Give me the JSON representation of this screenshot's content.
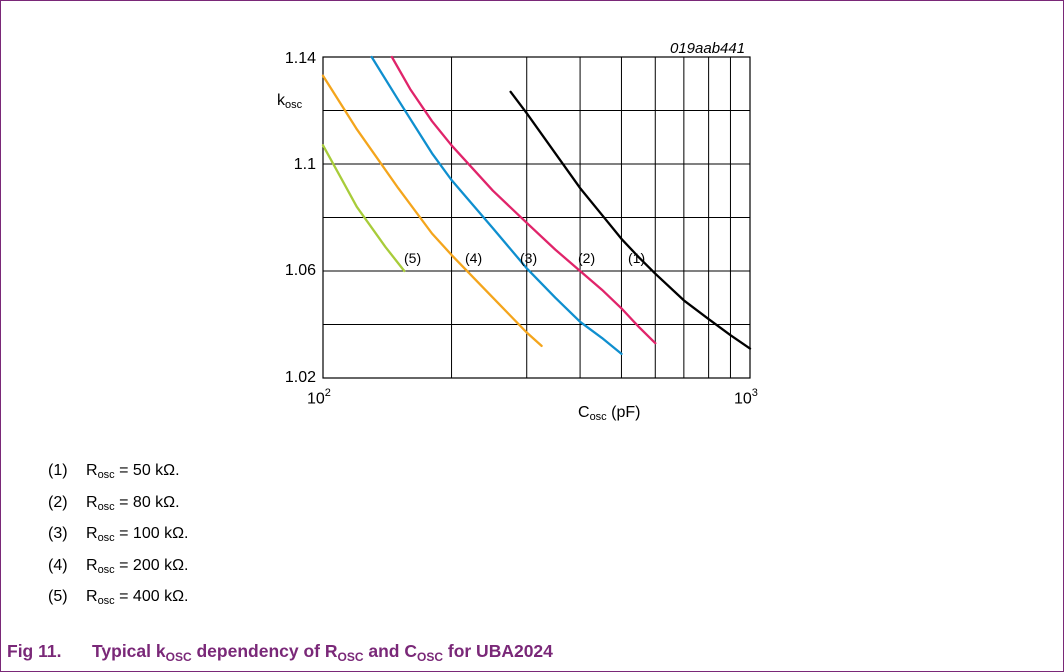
{
  "figure": {
    "code": "019aab441",
    "caption_number": "Fig 11.",
    "caption_parts": [
      "Typical k",
      "OSC",
      " dependency of R",
      "OSC",
      " and C",
      "OSC",
      " for UBA2024"
    ]
  },
  "legend": [
    {
      "num": "(1)",
      "prefix": "R",
      "sub": "osc",
      "text": " = 50 kΩ."
    },
    {
      "num": "(2)",
      "prefix": "R",
      "sub": "osc",
      "text": " = 80 kΩ."
    },
    {
      "num": "(3)",
      "prefix": "R",
      "sub": "osc",
      "text": " = 100 kΩ."
    },
    {
      "num": "(4)",
      "prefix": "R",
      "sub": "osc",
      "text": " = 200 kΩ."
    },
    {
      "num": "(5)",
      "prefix": "R",
      "sub": "osc",
      "text": " = 400 kΩ."
    }
  ],
  "chart_data": {
    "type": "line",
    "x_scale": "log",
    "xlim": [
      100,
      1000
    ],
    "ylim": [
      1.02,
      1.14
    ],
    "ylabel": {
      "main": "k",
      "sub": "osc"
    },
    "xlabel": {
      "main": "C",
      "sub": "osc",
      "unit": " (pF)"
    },
    "y_ticks": [
      "1.14",
      "1.1",
      "1.06",
      "1.02"
    ],
    "y_tick_values": [
      1.14,
      1.1,
      1.06,
      1.02
    ],
    "x_ticks": [
      {
        "base": "10",
        "exp": "2",
        "value": 100
      },
      {
        "base": "10",
        "exp": "3",
        "value": 1000
      }
    ],
    "grid": true,
    "series": [
      {
        "name": "(1)",
        "color": "#000000",
        "x": [
          275,
          300,
          350,
          400,
          450,
          500,
          550,
          600,
          700,
          800,
          900,
          1000
        ],
        "y": [
          1.127,
          1.119,
          1.104,
          1.091,
          1.081,
          1.072,
          1.065,
          1.059,
          1.049,
          1.042,
          1.036,
          1.031
        ]
      },
      {
        "name": "(2)",
        "color": "#e0246a",
        "x": [
          145,
          160,
          180,
          200,
          250,
          300,
          350,
          400,
          450,
          500,
          550,
          600
        ],
        "y": [
          1.14,
          1.128,
          1.116,
          1.107,
          1.09,
          1.078,
          1.068,
          1.06,
          1.053,
          1.046,
          1.039,
          1.033
        ]
      },
      {
        "name": "(3)",
        "color": "#0f8fcf",
        "x": [
          130,
          150,
          180,
          200,
          250,
          300,
          350,
          400,
          450,
          500
        ],
        "y": [
          1.14,
          1.124,
          1.104,
          1.094,
          1.076,
          1.061,
          1.05,
          1.041,
          1.035,
          1.029
        ]
      },
      {
        "name": "(4)",
        "color": "#f4a51c",
        "x": [
          100,
          120,
          150,
          180,
          200,
          250,
          300,
          325
        ],
        "y": [
          1.133,
          1.113,
          1.091,
          1.074,
          1.066,
          1.05,
          1.037,
          1.032
        ]
      },
      {
        "name": "(5)",
        "color": "#a8cc3a",
        "x": [
          100,
          110,
          120,
          140,
          155
        ],
        "y": [
          1.107,
          1.095,
          1.084,
          1.069,
          1.06
        ]
      }
    ],
    "annotations": [
      "(1)",
      "(2)",
      "(3)",
      "(4)",
      "(5)"
    ]
  }
}
